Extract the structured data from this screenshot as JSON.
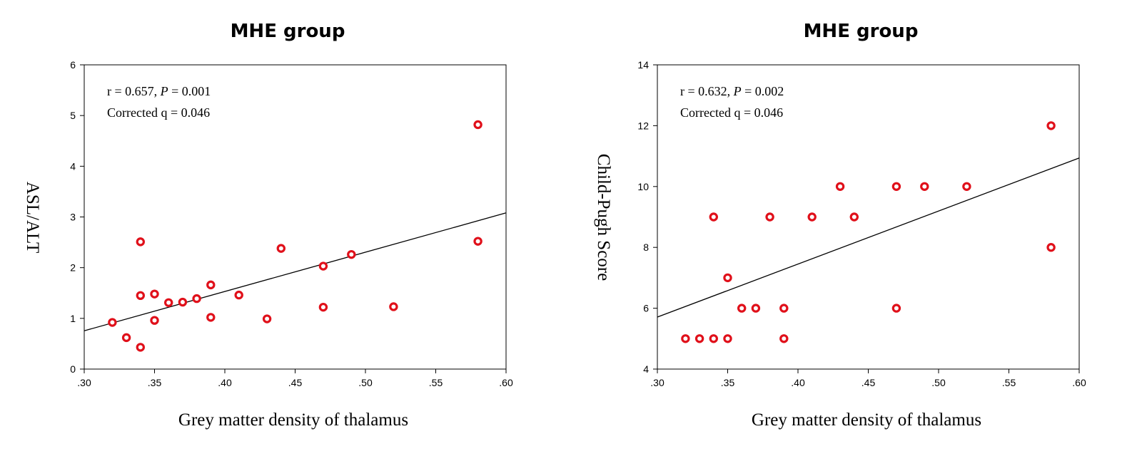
{
  "chart_data": [
    {
      "type": "scatter",
      "title": "MHE group",
      "xlabel": "Grey matter density of thalamus",
      "ylabel": "ASL/ALT",
      "xlim": [
        0.3,
        0.6
      ],
      "ylim": [
        0,
        6
      ],
      "xticks": [
        0.3,
        0.35,
        0.4,
        0.45,
        0.5,
        0.55,
        0.6
      ],
      "xtick_labels": [
        ".30",
        ".35",
        ".40",
        ".45",
        ".50",
        ".55",
        ".60"
      ],
      "yticks": [
        0,
        1,
        2,
        3,
        4,
        5,
        6
      ],
      "ytick_labels": [
        "0",
        "1",
        "2",
        "3",
        "4",
        "5",
        "6"
      ],
      "stats": {
        "r_text": "r = 0.657, ",
        "p_label": "P",
        "p_text": " = 0.001",
        "corrected_text": "Corrected q = 0.046"
      },
      "fit_line": {
        "intercept": -1.57,
        "slope": 7.75
      },
      "x": [
        0.32,
        0.33,
        0.34,
        0.34,
        0.34,
        0.35,
        0.35,
        0.36,
        0.37,
        0.38,
        0.39,
        0.39,
        0.41,
        0.43,
        0.44,
        0.47,
        0.47,
        0.49,
        0.52,
        0.58,
        0.58
      ],
      "y": [
        0.92,
        0.62,
        0.43,
        1.45,
        2.51,
        1.48,
        0.96,
        1.31,
        1.32,
        1.39,
        1.66,
        1.02,
        1.46,
        0.99,
        2.38,
        2.03,
        1.22,
        2.26,
        1.23,
        4.82,
        2.52
      ],
      "marker_color": "#e0101a"
    },
    {
      "type": "scatter",
      "title": "MHE group",
      "xlabel": "Grey matter density of thalamus",
      "ylabel": "Child-Pugh Score",
      "xlim": [
        0.3,
        0.6
      ],
      "ylim": [
        4,
        14
      ],
      "xticks": [
        0.3,
        0.35,
        0.4,
        0.45,
        0.5,
        0.55,
        0.6
      ],
      "xtick_labels": [
        ".30",
        ".35",
        ".40",
        ".45",
        ".50",
        ".55",
        ".60"
      ],
      "yticks": [
        4,
        6,
        8,
        10,
        12,
        14
      ],
      "ytick_labels": [
        "4",
        "6",
        "8",
        "10",
        "12",
        "14"
      ],
      "stats": {
        "r_text": "r = 0.632, ",
        "p_label": "P",
        "p_text": " = 0.002",
        "corrected_text": "Corrected q = 0.046"
      },
      "fit_line": {
        "intercept": 0.48,
        "slope": 17.43
      },
      "x": [
        0.32,
        0.33,
        0.34,
        0.35,
        0.34,
        0.35,
        0.36,
        0.37,
        0.38,
        0.39,
        0.39,
        0.41,
        0.43,
        0.44,
        0.47,
        0.47,
        0.49,
        0.52,
        0.58,
        0.58
      ],
      "y": [
        5,
        5,
        5,
        5,
        9,
        7,
        6,
        6,
        9,
        6,
        5,
        9,
        10,
        9,
        10,
        6,
        10,
        10,
        12,
        8
      ],
      "marker_color": "#e0101a"
    }
  ]
}
